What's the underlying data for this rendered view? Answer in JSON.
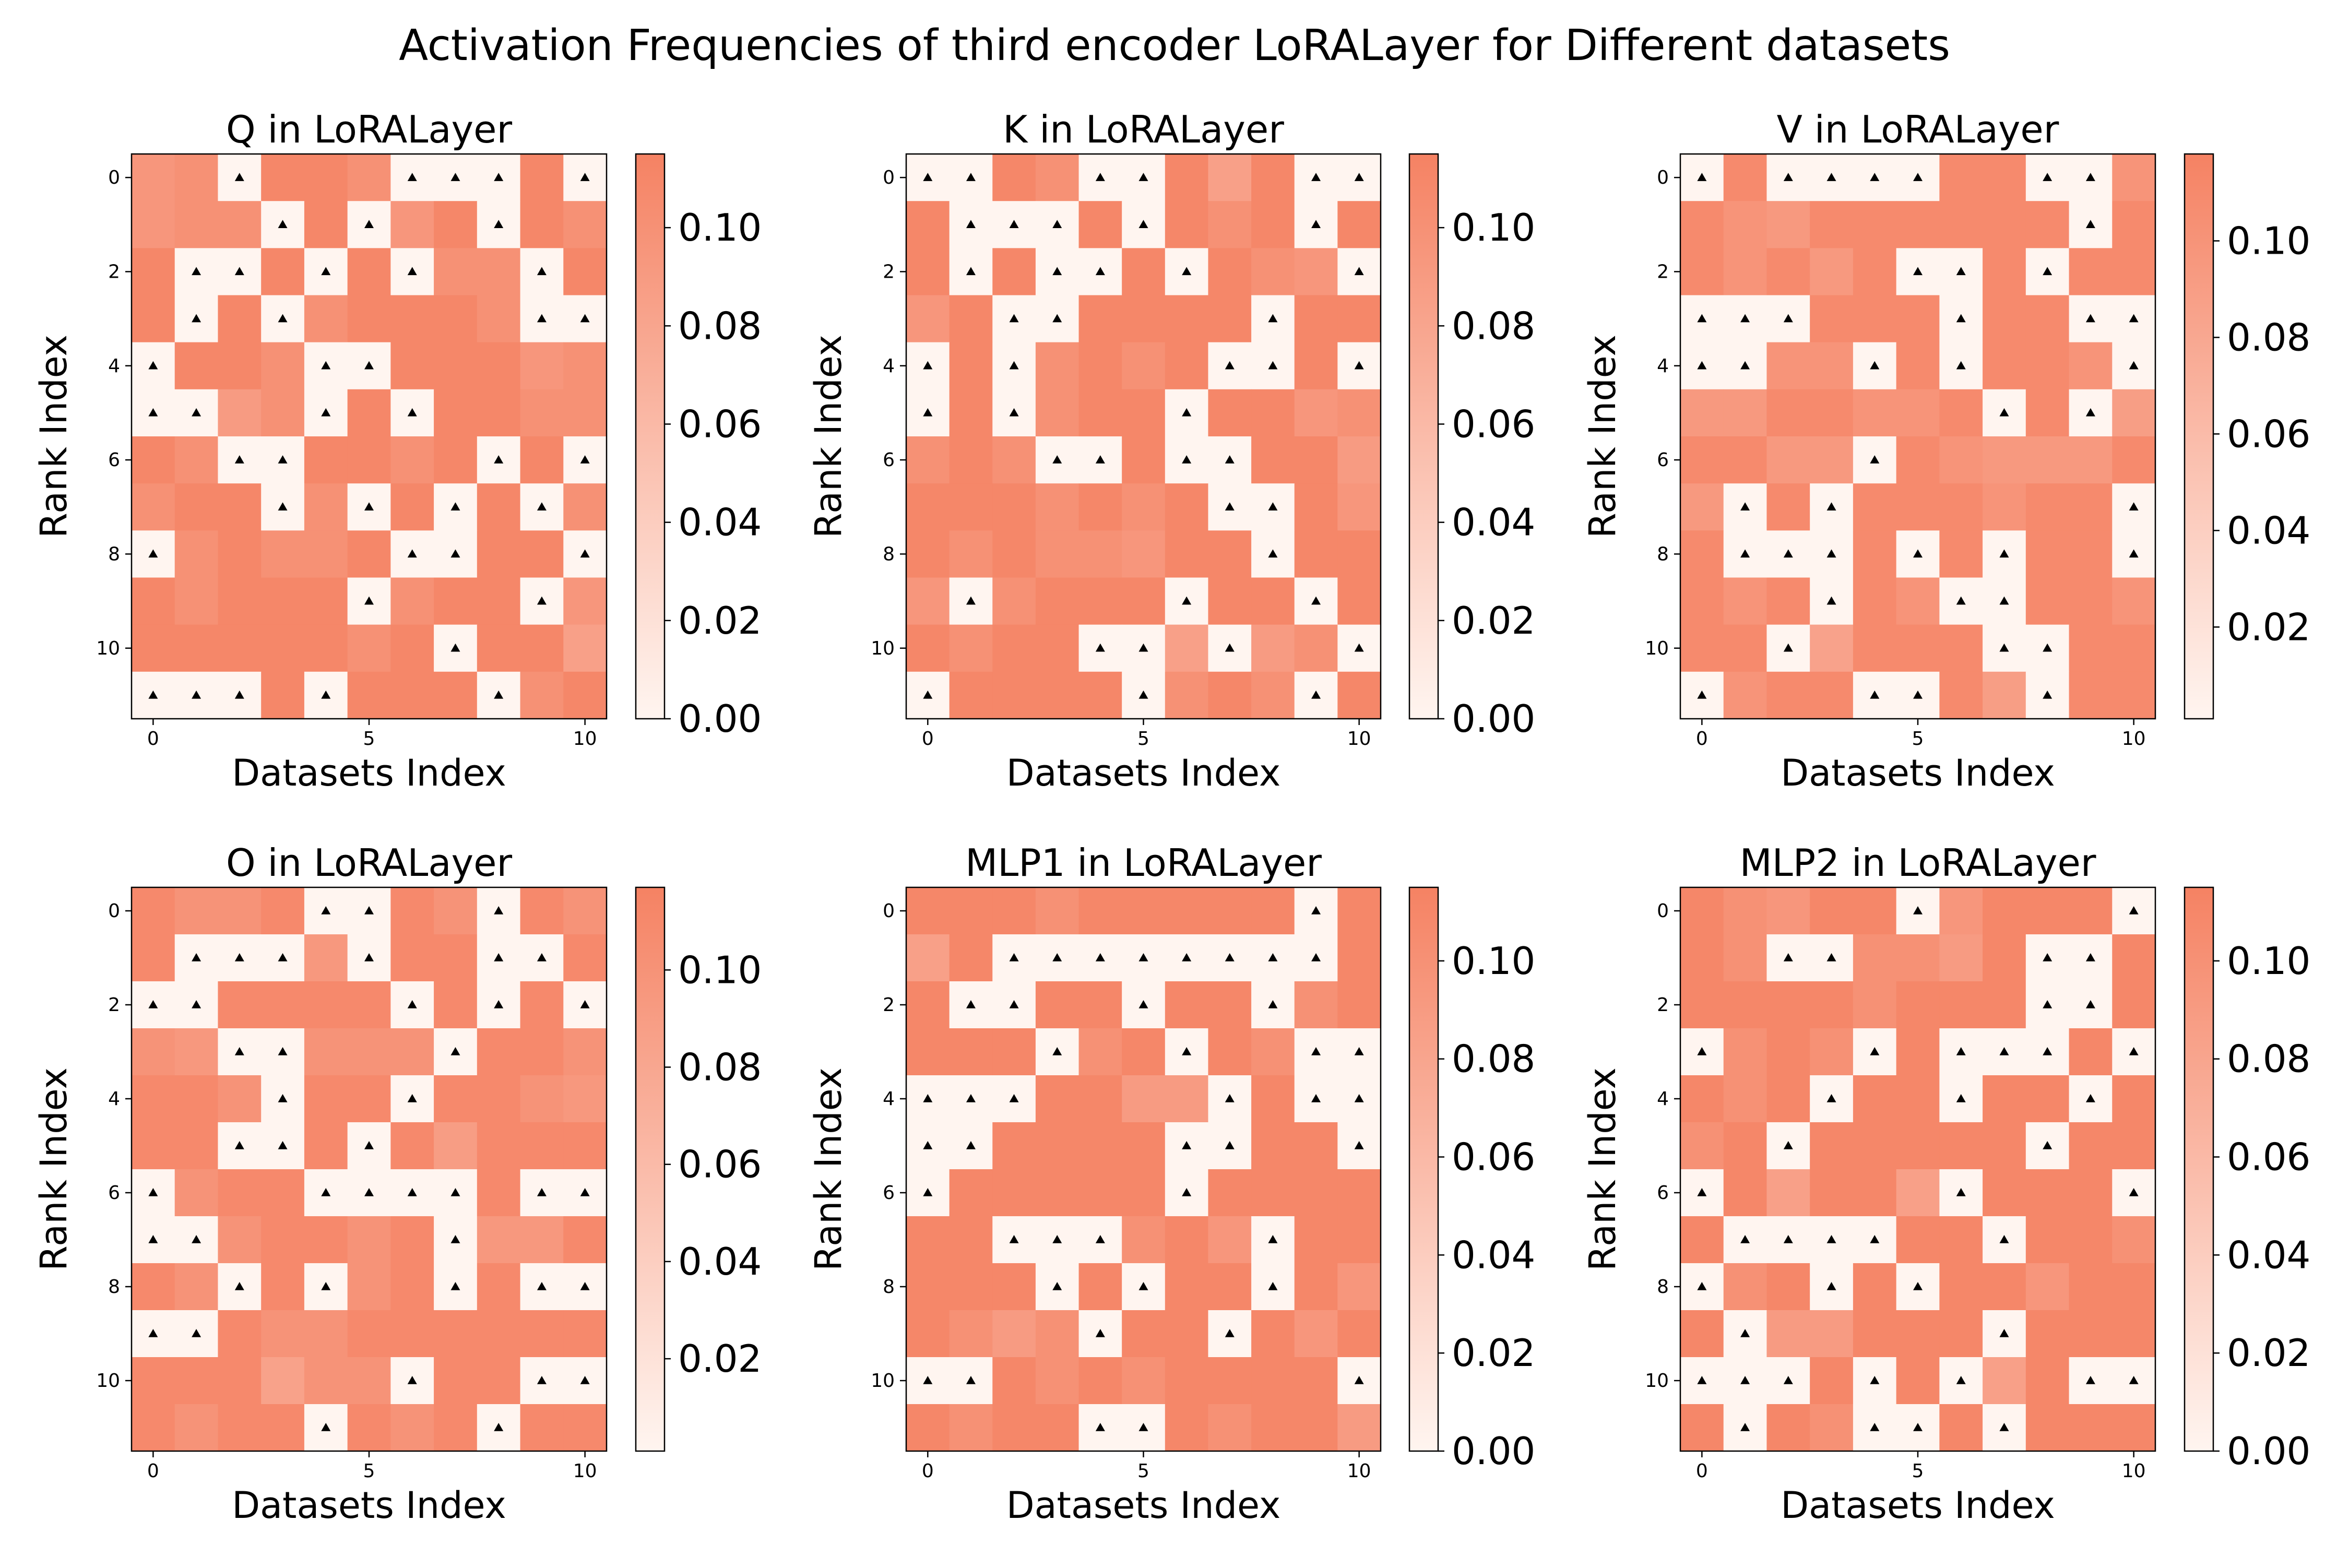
{
  "figure": {
    "suptitle": "Activation Frequencies of third encoder LoRALayer for Different datasets",
    "cmap": {
      "low": "#fff5f0",
      "high": "#f58263"
    },
    "marker_color": "#000000"
  },
  "chart_data": [
    {
      "type": "heatmap",
      "title": "Q in LoRALayer",
      "xlabel": "Datasets Index",
      "ylabel": "Rank Index",
      "x_ticks": [
        "0",
        "5",
        "10"
      ],
      "y_ticks": [
        "0",
        "2",
        "4",
        "6",
        "8",
        "10"
      ],
      "colorbar_ticks": [
        "0.00",
        "0.02",
        "0.04",
        "0.06",
        "0.08",
        "0.10"
      ],
      "vmin": 0.0,
      "vmax": 0.115,
      "values": [
        [
          0.095,
          0.1,
          0.0,
          0.11,
          0.11,
          0.1,
          0.0,
          0.0,
          0.0,
          0.11,
          0.0
        ],
        [
          0.095,
          0.1,
          0.1,
          0.0,
          0.11,
          0.0,
          0.095,
          0.11,
          0.0,
          0.11,
          0.1
        ],
        [
          0.11,
          0.0,
          0.0,
          0.11,
          0.0,
          0.11,
          0.0,
          0.1,
          0.1,
          0.0,
          0.11
        ],
        [
          0.11,
          0.0,
          0.11,
          0.0,
          0.1,
          0.11,
          0.11,
          0.11,
          0.1,
          0.0,
          0.0
        ],
        [
          0.0,
          0.11,
          0.11,
          0.1,
          0.0,
          0.0,
          0.11,
          0.11,
          0.11,
          0.095,
          0.1
        ],
        [
          0.0,
          0.0,
          0.09,
          0.1,
          0.0,
          0.11,
          0.0,
          0.11,
          0.11,
          0.1,
          0.1
        ],
        [
          0.11,
          0.1,
          0.0,
          0.0,
          0.11,
          0.11,
          0.1,
          0.11,
          0.0,
          0.11,
          0.0
        ],
        [
          0.1,
          0.11,
          0.11,
          0.0,
          0.1,
          0.0,
          0.11,
          0.0,
          0.11,
          0.0,
          0.1
        ],
        [
          0.0,
          0.1,
          0.11,
          0.1,
          0.1,
          0.11,
          0.0,
          0.0,
          0.11,
          0.11,
          0.0
        ],
        [
          0.11,
          0.1,
          0.11,
          0.11,
          0.11,
          0.0,
          0.1,
          0.11,
          0.11,
          0.0,
          0.095
        ],
        [
          0.11,
          0.11,
          0.11,
          0.11,
          0.11,
          0.1,
          0.11,
          0.0,
          0.11,
          0.11,
          0.085
        ],
        [
          0.0,
          0.0,
          0.0,
          0.11,
          0.0,
          0.11,
          0.11,
          0.11,
          0.0,
          0.1,
          0.11
        ]
      ]
    },
    {
      "type": "heatmap",
      "title": "K in LoRALayer",
      "xlabel": "Datasets Index",
      "ylabel": "Rank Index",
      "x_ticks": [
        "0",
        "5",
        "10"
      ],
      "y_ticks": [
        "0",
        "2",
        "4",
        "6",
        "8",
        "10"
      ],
      "colorbar_ticks": [
        "0.00",
        "0.02",
        "0.04",
        "0.06",
        "0.08",
        "0.10"
      ],
      "vmin": 0.0,
      "vmax": 0.115,
      "values": [
        [
          0.0,
          0.0,
          0.11,
          0.1,
          0.0,
          0.0,
          0.11,
          0.085,
          0.11,
          0.0,
          0.0
        ],
        [
          0.11,
          0.0,
          0.0,
          0.0,
          0.11,
          0.0,
          0.11,
          0.1,
          0.11,
          0.0,
          0.11
        ],
        [
          0.11,
          0.0,
          0.11,
          0.0,
          0.0,
          0.11,
          0.0,
          0.11,
          0.1,
          0.095,
          0.0
        ],
        [
          0.095,
          0.11,
          0.0,
          0.0,
          0.11,
          0.11,
          0.11,
          0.11,
          0.0,
          0.11,
          0.11
        ],
        [
          0.0,
          0.11,
          0.0,
          0.1,
          0.11,
          0.1,
          0.11,
          0.0,
          0.0,
          0.11,
          0.0
        ],
        [
          0.0,
          0.11,
          0.0,
          0.1,
          0.11,
          0.11,
          0.0,
          0.11,
          0.11,
          0.095,
          0.1
        ],
        [
          0.1,
          0.11,
          0.1,
          0.0,
          0.0,
          0.11,
          0.0,
          0.0,
          0.11,
          0.11,
          0.09
        ],
        [
          0.11,
          0.11,
          0.11,
          0.1,
          0.11,
          0.1,
          0.11,
          0.0,
          0.0,
          0.11,
          0.095
        ],
        [
          0.11,
          0.1,
          0.11,
          0.1,
          0.1,
          0.095,
          0.11,
          0.11,
          0.0,
          0.11,
          0.11
        ],
        [
          0.095,
          0.0,
          0.1,
          0.11,
          0.11,
          0.11,
          0.0,
          0.11,
          0.11,
          0.0,
          0.11
        ],
        [
          0.11,
          0.1,
          0.11,
          0.11,
          0.0,
          0.0,
          0.085,
          0.0,
          0.09,
          0.1,
          0.0
        ],
        [
          0.0,
          0.11,
          0.11,
          0.11,
          0.11,
          0.0,
          0.1,
          0.11,
          0.1,
          0.0,
          0.11
        ]
      ]
    },
    {
      "type": "heatmap",
      "title": "V in LoRALayer",
      "xlabel": "Datasets Index",
      "ylabel": "Rank Index",
      "x_ticks": [
        "0",
        "5",
        "10"
      ],
      "y_ticks": [
        "0",
        "2",
        "4",
        "6",
        "8",
        "10"
      ],
      "colorbar_ticks": [
        "0.02",
        "0.04",
        "0.06",
        "0.08",
        "0.10"
      ],
      "vmin": 0.001,
      "vmax": 0.118,
      "values": [
        [
          0.0,
          0.11,
          0.0,
          0.0,
          0.0,
          0.0,
          0.11,
          0.11,
          0.0,
          0.0,
          0.1
        ],
        [
          0.11,
          0.1,
          0.095,
          0.11,
          0.11,
          0.11,
          0.11,
          0.11,
          0.11,
          0.0,
          0.11
        ],
        [
          0.11,
          0.1,
          0.11,
          0.095,
          0.11,
          0.0,
          0.0,
          0.11,
          0.0,
          0.11,
          0.11
        ],
        [
          0.0,
          0.0,
          0.0,
          0.11,
          0.11,
          0.11,
          0.0,
          0.11,
          0.11,
          0.0,
          0.0
        ],
        [
          0.0,
          0.0,
          0.1,
          0.1,
          0.0,
          0.11,
          0.0,
          0.11,
          0.11,
          0.1,
          0.0
        ],
        [
          0.095,
          0.095,
          0.11,
          0.11,
          0.1,
          0.1,
          0.11,
          0.0,
          0.11,
          0.0,
          0.09
        ],
        [
          0.11,
          0.11,
          0.095,
          0.095,
          0.0,
          0.11,
          0.1,
          0.095,
          0.095,
          0.095,
          0.11
        ],
        [
          0.095,
          0.0,
          0.11,
          0.0,
          0.11,
          0.11,
          0.11,
          0.1,
          0.11,
          0.11,
          0.0
        ],
        [
          0.11,
          0.0,
          0.0,
          0.0,
          0.11,
          0.0,
          0.11,
          0.0,
          0.11,
          0.11,
          0.0
        ],
        [
          0.11,
          0.1,
          0.11,
          0.0,
          0.11,
          0.1,
          0.0,
          0.0,
          0.11,
          0.11,
          0.1
        ],
        [
          0.11,
          0.11,
          0.0,
          0.085,
          0.11,
          0.11,
          0.11,
          0.0,
          0.0,
          0.11,
          0.11
        ],
        [
          0.0,
          0.1,
          0.11,
          0.11,
          0.0,
          0.0,
          0.11,
          0.09,
          0.0,
          0.11,
          0.11
        ]
      ]
    },
    {
      "type": "heatmap",
      "title": "O in LoRALayer",
      "xlabel": "Datasets Index",
      "ylabel": "Rank Index",
      "x_ticks": [
        "0",
        "5",
        "10"
      ],
      "y_ticks": [
        "0",
        "2",
        "4",
        "6",
        "8",
        "10"
      ],
      "colorbar_ticks": [
        "0.02",
        "0.04",
        "0.06",
        "0.08",
        "0.10"
      ],
      "vmin": 0.001,
      "vmax": 0.117,
      "values": [
        [
          0.11,
          0.1,
          0.1,
          0.11,
          0.0,
          0.0,
          0.11,
          0.1,
          0.0,
          0.11,
          0.1
        ],
        [
          0.11,
          0.0,
          0.0,
          0.0,
          0.095,
          0.0,
          0.11,
          0.11,
          0.0,
          0.0,
          0.11
        ],
        [
          0.0,
          0.0,
          0.11,
          0.11,
          0.11,
          0.11,
          0.0,
          0.11,
          0.0,
          0.11,
          0.0
        ],
        [
          0.1,
          0.095,
          0.0,
          0.0,
          0.1,
          0.1,
          0.1,
          0.0,
          0.11,
          0.11,
          0.1
        ],
        [
          0.11,
          0.11,
          0.1,
          0.0,
          0.11,
          0.11,
          0.0,
          0.11,
          0.11,
          0.1,
          0.095
        ],
        [
          0.11,
          0.11,
          0.0,
          0.0,
          0.11,
          0.0,
          0.11,
          0.09,
          0.11,
          0.11,
          0.11
        ],
        [
          0.0,
          0.1,
          0.11,
          0.11,
          0.0,
          0.0,
          0.0,
          0.0,
          0.11,
          0.0,
          0.0
        ],
        [
          0.0,
          0.0,
          0.1,
          0.11,
          0.11,
          0.1,
          0.11,
          0.0,
          0.095,
          0.095,
          0.11
        ],
        [
          0.11,
          0.1,
          0.0,
          0.11,
          0.0,
          0.1,
          0.11,
          0.0,
          0.11,
          0.0,
          0.0
        ],
        [
          0.0,
          0.0,
          0.11,
          0.1,
          0.1,
          0.11,
          0.11,
          0.11,
          0.11,
          0.11,
          0.11
        ],
        [
          0.11,
          0.11,
          0.11,
          0.085,
          0.1,
          0.1,
          0.0,
          0.11,
          0.11,
          0.0,
          0.0
        ],
        [
          0.11,
          0.1,
          0.11,
          0.11,
          0.0,
          0.11,
          0.1,
          0.11,
          0.0,
          0.11,
          0.11
        ]
      ]
    },
    {
      "type": "heatmap",
      "title": "MLP1 in LoRALayer",
      "xlabel": "Datasets Index",
      "ylabel": "Rank Index",
      "x_ticks": [
        "0",
        "5",
        "10"
      ],
      "y_ticks": [
        "0",
        "2",
        "4",
        "6",
        "8",
        "10"
      ],
      "colorbar_ticks": [
        "0.00",
        "0.02",
        "0.04",
        "0.06",
        "0.08",
        "0.10"
      ],
      "vmin": 0.0,
      "vmax": 0.115,
      "values": [
        [
          0.11,
          0.11,
          0.11,
          0.1,
          0.11,
          0.11,
          0.11,
          0.11,
          0.11,
          0.0,
          0.11
        ],
        [
          0.085,
          0.11,
          0.0,
          0.0,
          0.0,
          0.0,
          0.0,
          0.0,
          0.0,
          0.0,
          0.11
        ],
        [
          0.11,
          0.0,
          0.0,
          0.11,
          0.11,
          0.0,
          0.11,
          0.11,
          0.0,
          0.1,
          0.11
        ],
        [
          0.11,
          0.11,
          0.11,
          0.0,
          0.1,
          0.11,
          0.0,
          0.11,
          0.1,
          0.0,
          0.0
        ],
        [
          0.0,
          0.0,
          0.0,
          0.11,
          0.11,
          0.09,
          0.09,
          0.0,
          0.11,
          0.0,
          0.0
        ],
        [
          0.0,
          0.0,
          0.11,
          0.11,
          0.11,
          0.11,
          0.0,
          0.0,
          0.11,
          0.11,
          0.0
        ],
        [
          0.0,
          0.11,
          0.11,
          0.11,
          0.11,
          0.11,
          0.0,
          0.11,
          0.11,
          0.11,
          0.11
        ],
        [
          0.11,
          0.11,
          0.0,
          0.0,
          0.0,
          0.1,
          0.11,
          0.095,
          0.0,
          0.11,
          0.11
        ],
        [
          0.11,
          0.11,
          0.11,
          0.0,
          0.11,
          0.0,
          0.11,
          0.11,
          0.0,
          0.11,
          0.095
        ],
        [
          0.11,
          0.1,
          0.09,
          0.1,
          0.0,
          0.11,
          0.11,
          0.0,
          0.11,
          0.095,
          0.11
        ],
        [
          0.0,
          0.0,
          0.11,
          0.1,
          0.11,
          0.1,
          0.11,
          0.11,
          0.11,
          0.11,
          0.0
        ],
        [
          0.11,
          0.1,
          0.11,
          0.11,
          0.0,
          0.0,
          0.11,
          0.1,
          0.11,
          0.11,
          0.09
        ]
      ]
    },
    {
      "type": "heatmap",
      "title": "MLP2 in LoRALayer",
      "xlabel": "Datasets Index",
      "ylabel": "Rank Index",
      "x_ticks": [
        "0",
        "5",
        "10"
      ],
      "y_ticks": [
        "0",
        "2",
        "4",
        "6",
        "8",
        "10"
      ],
      "colorbar_ticks": [
        "0.00",
        "0.02",
        "0.04",
        "0.06",
        "0.08",
        "0.10"
      ],
      "vmin": 0.0,
      "vmax": 0.115,
      "values": [
        [
          0.11,
          0.1,
          0.095,
          0.11,
          0.11,
          0.0,
          0.095,
          0.11,
          0.11,
          0.11,
          0.0
        ],
        [
          0.11,
          0.1,
          0.0,
          0.0,
          0.1,
          0.1,
          0.09,
          0.11,
          0.0,
          0.0,
          0.11
        ],
        [
          0.11,
          0.11,
          0.11,
          0.11,
          0.1,
          0.11,
          0.11,
          0.11,
          0.0,
          0.0,
          0.11
        ],
        [
          0.0,
          0.1,
          0.11,
          0.1,
          0.0,
          0.11,
          0.0,
          0.0,
          0.0,
          0.11,
          0.0
        ],
        [
          0.11,
          0.1,
          0.11,
          0.0,
          0.11,
          0.11,
          0.0,
          0.11,
          0.11,
          0.0,
          0.11
        ],
        [
          0.1,
          0.11,
          0.0,
          0.11,
          0.11,
          0.11,
          0.11,
          0.11,
          0.0,
          0.11,
          0.11
        ],
        [
          0.0,
          0.11,
          0.085,
          0.11,
          0.11,
          0.085,
          0.0,
          0.11,
          0.11,
          0.11,
          0.0
        ],
        [
          0.11,
          0.0,
          0.0,
          0.0,
          0.0,
          0.11,
          0.11,
          0.0,
          0.11,
          0.11,
          0.1
        ],
        [
          0.0,
          0.1,
          0.11,
          0.0,
          0.11,
          0.0,
          0.11,
          0.11,
          0.095,
          0.11,
          0.11
        ],
        [
          0.11,
          0.0,
          0.09,
          0.09,
          0.11,
          0.11,
          0.11,
          0.0,
          0.11,
          0.11,
          0.11
        ],
        [
          0.0,
          0.0,
          0.0,
          0.11,
          0.0,
          0.11,
          0.0,
          0.085,
          0.11,
          0.0,
          0.0
        ],
        [
          0.11,
          0.0,
          0.11,
          0.1,
          0.0,
          0.0,
          0.11,
          0.0,
          0.11,
          0.11,
          0.11
        ]
      ]
    }
  ]
}
